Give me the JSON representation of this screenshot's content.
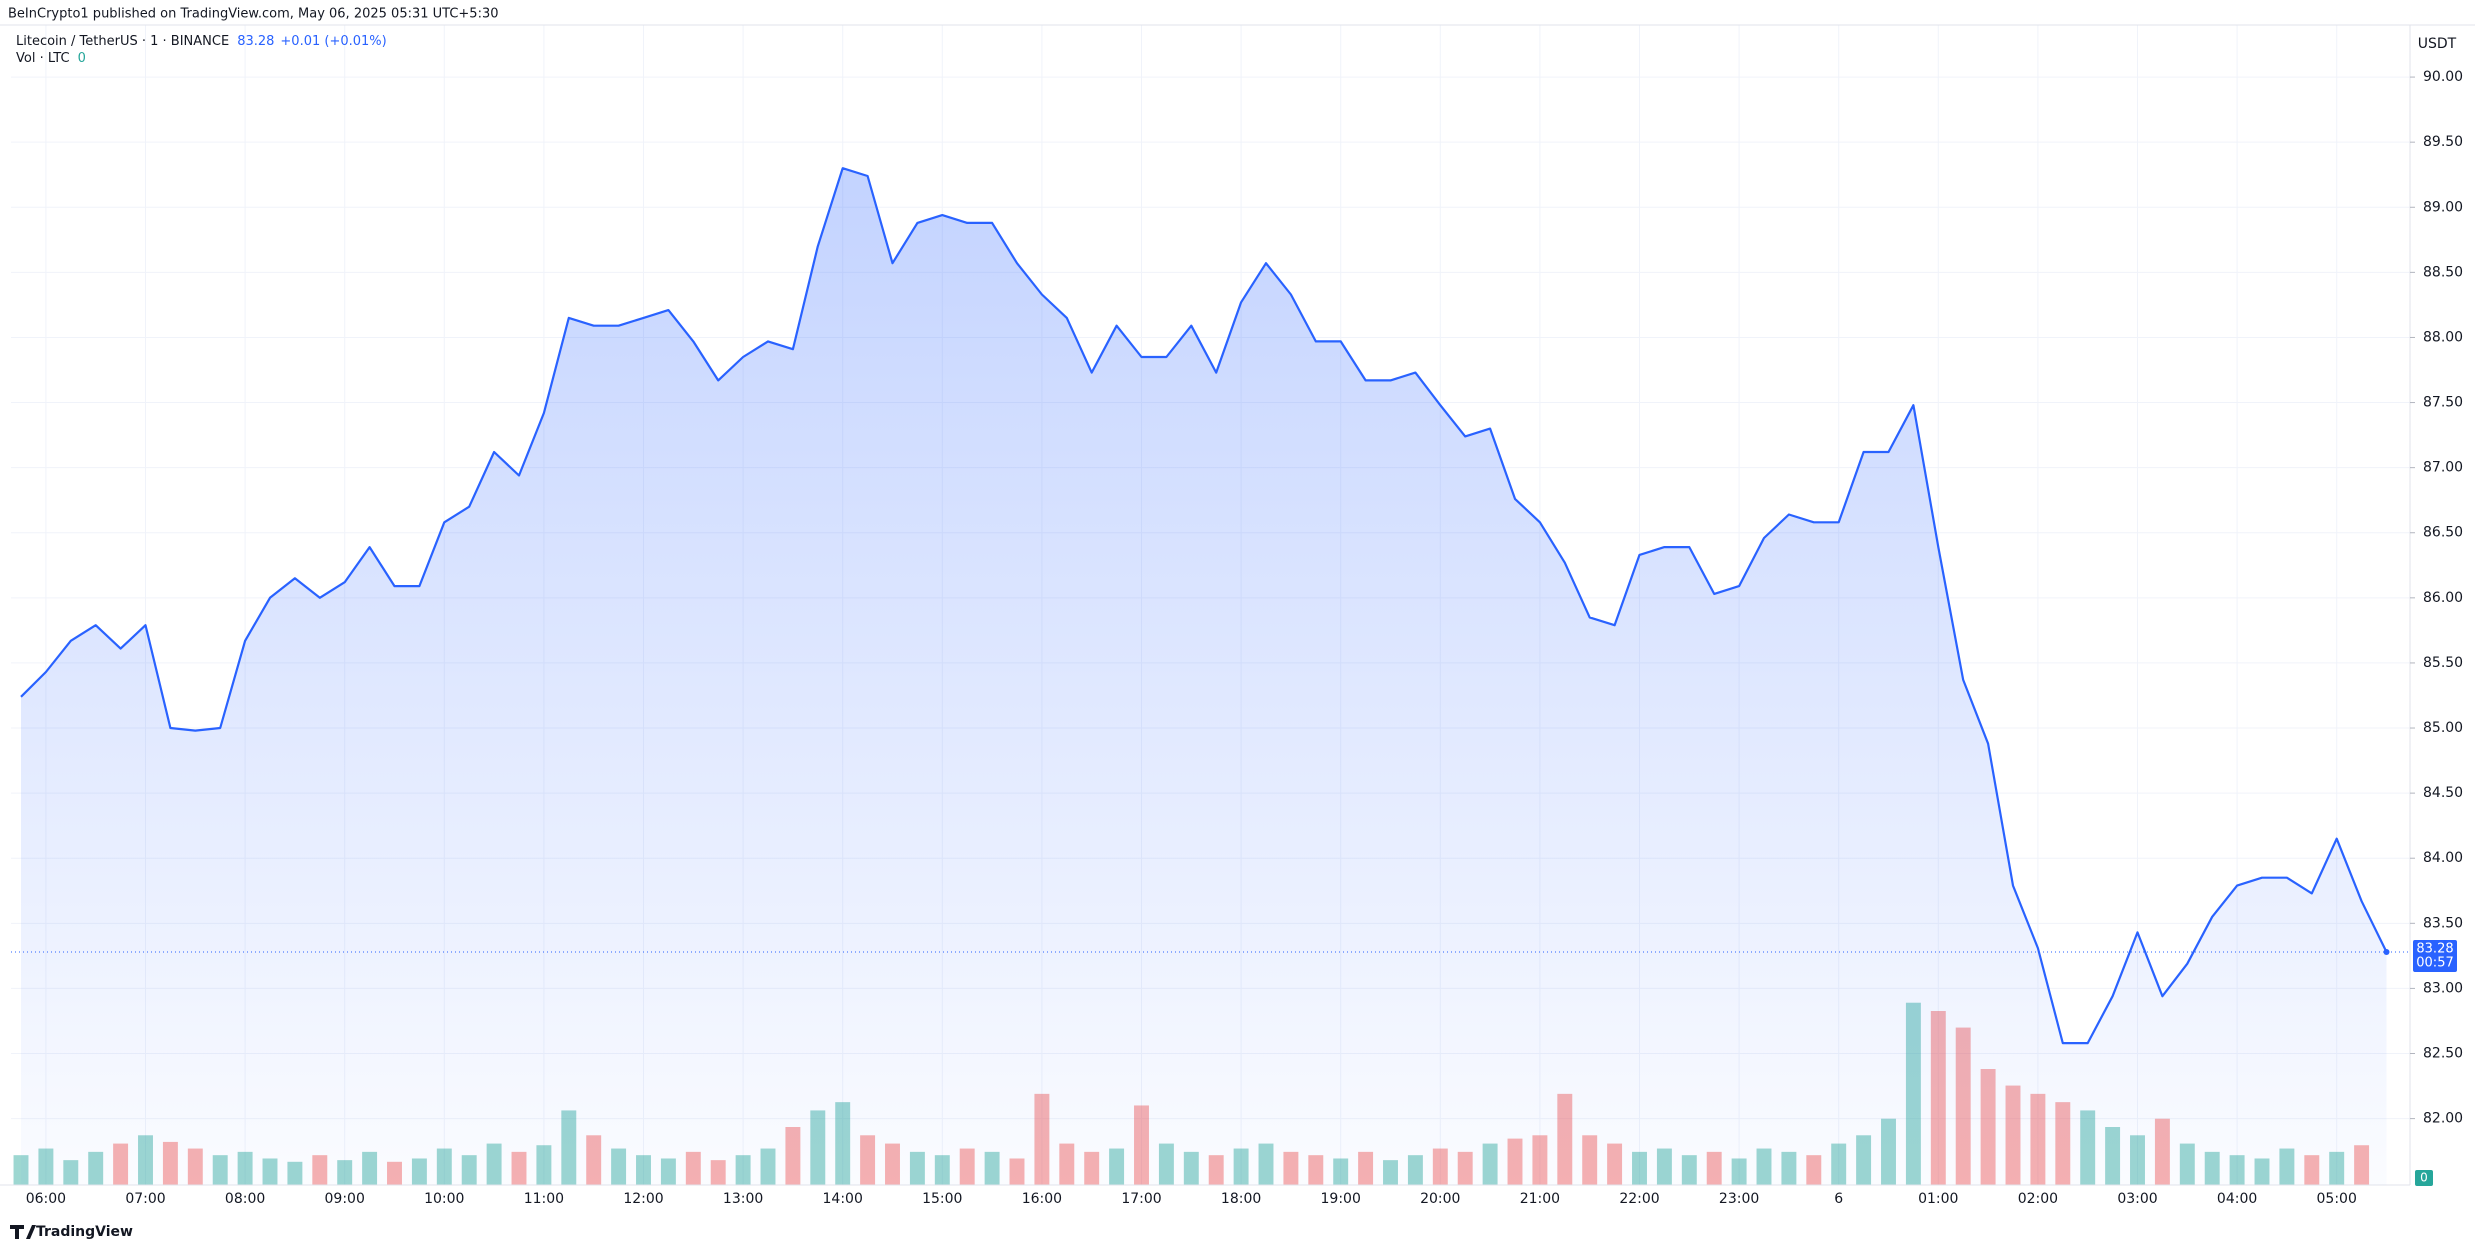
{
  "header": {
    "published": "BeInCrypto1 published on TradingView.com, May 06, 2025 05:31 UTC+5:30"
  },
  "footer": {
    "brand": "TradingView"
  },
  "chart_data": {
    "type": "area",
    "change": "+0.01 (+0.01%)",
    "currency": "USDT",
    "countdown": "00:57",
    "categories": [
      null,
      "06:00",
      null,
      null,
      null,
      "07:00",
      null,
      null,
      null,
      "08:00",
      null,
      null,
      null,
      "09:00",
      null,
      null,
      null,
      "10:00",
      null,
      null,
      null,
      "11:00",
      null,
      null,
      null,
      "12:00",
      null,
      null,
      null,
      "13:00",
      null,
      null,
      null,
      "14:00",
      null,
      null,
      null,
      "15:00",
      null,
      null,
      null,
      "16:00",
      null,
      null,
      null,
      "17:00",
      null,
      null,
      null,
      "18:00",
      null,
      null,
      null,
      "19:00",
      null,
      null,
      null,
      "20:00",
      null,
      null,
      null,
      "21:00",
      null,
      null,
      null,
      "22:00",
      null,
      null,
      null,
      "23:00",
      null,
      null,
      null,
      "6",
      null,
      null,
      null,
      "01:00",
      null,
      null,
      null,
      "02:00",
      null,
      null,
      null,
      "03:00",
      null,
      null,
      null,
      "04:00",
      null,
      null,
      null,
      "05:00",
      null,
      null
    ],
    "series": [
      {
        "name": "Litecoin / TetherUS · 1 · BINANCE",
        "color": "#2962ff",
        "values": [
          85.24,
          85.43,
          85.67,
          85.79,
          85.61,
          85.79,
          85.0,
          84.98,
          85.0,
          85.67,
          86.0,
          86.15,
          86.0,
          86.12,
          86.39,
          86.09,
          86.09,
          86.58,
          86.7,
          87.12,
          86.94,
          87.42,
          88.15,
          88.09,
          88.09,
          88.15,
          88.21,
          87.97,
          87.67,
          87.85,
          87.97,
          87.91,
          88.7,
          89.3,
          89.24,
          88.57,
          88.88,
          88.94,
          88.88,
          88.88,
          88.57,
          88.33,
          88.15,
          87.73,
          88.09,
          87.85,
          87.85,
          88.09,
          87.73,
          88.27,
          88.57,
          88.33,
          87.97,
          87.97,
          87.67,
          87.67,
          87.73,
          87.48,
          87.24,
          87.3,
          86.76,
          86.58,
          86.27,
          85.85,
          85.79,
          86.33,
          86.39,
          86.39,
          86.03,
          86.09,
          86.46,
          86.64,
          86.58,
          86.58,
          87.12,
          87.12,
          87.48,
          86.39,
          85.37,
          84.88,
          83.79,
          83.31,
          82.58,
          82.58,
          82.94,
          83.43,
          82.94,
          83.19,
          83.55,
          83.79,
          83.85,
          83.85,
          83.73,
          84.15,
          83.67,
          83.28
        ]
      },
      {
        "name": "Vol · LTC",
        "axis": "y2",
        "up_color": "#26a69a",
        "down_color": "#ef5350",
        "values": [
          18,
          22,
          15,
          20,
          25,
          30,
          26,
          22,
          18,
          20,
          16,
          14,
          18,
          15,
          20,
          14,
          16,
          22,
          18,
          25,
          20,
          24,
          45,
          30,
          22,
          18,
          16,
          20,
          15,
          18,
          22,
          35,
          45,
          50,
          30,
          25,
          20,
          18,
          22,
          20,
          16,
          55,
          25,
          20,
          22,
          48,
          25,
          20,
          18,
          22,
          25,
          20,
          18,
          16,
          20,
          15,
          18,
          22,
          20,
          25,
          28,
          30,
          55,
          30,
          25,
          20,
          22,
          18,
          20,
          16,
          22,
          20,
          18,
          25,
          30,
          40,
          110,
          105,
          95,
          70,
          60,
          55,
          50,
          45,
          35,
          30,
          40,
          25,
          20,
          18,
          16,
          22,
          18,
          20,
          24,
          0
        ]
      }
    ],
    "ylim": [
      81.49,
      90.4
    ],
    "yticks": [
      {
        "value": 82,
        "label": "82.00"
      },
      {
        "value": 82.5,
        "label": "82.50"
      },
      {
        "value": 83,
        "label": "83.00"
      },
      {
        "value": 83.5,
        "label": "83.50"
      },
      {
        "value": 84,
        "label": "84.00"
      },
      {
        "value": 84.5,
        "label": "84.50"
      },
      {
        "value": 85,
        "label": "85.00"
      },
      {
        "value": 85.5,
        "label": "85.50"
      },
      {
        "value": 86,
        "label": "86.00"
      },
      {
        "value": 86.5,
        "label": "86.50"
      },
      {
        "value": 87,
        "label": "87.00"
      },
      {
        "value": 87.5,
        "label": "87.50"
      },
      {
        "value": 88,
        "label": "88.00"
      },
      {
        "value": 88.5,
        "label": "88.50"
      },
      {
        "value": 89,
        "label": "89.00"
      },
      {
        "value": 89.5,
        "label": "89.50"
      },
      {
        "value": 90,
        "label": "90.00"
      }
    ],
    "y2lim": [
      0,
      700
    ],
    "grid": true
  }
}
